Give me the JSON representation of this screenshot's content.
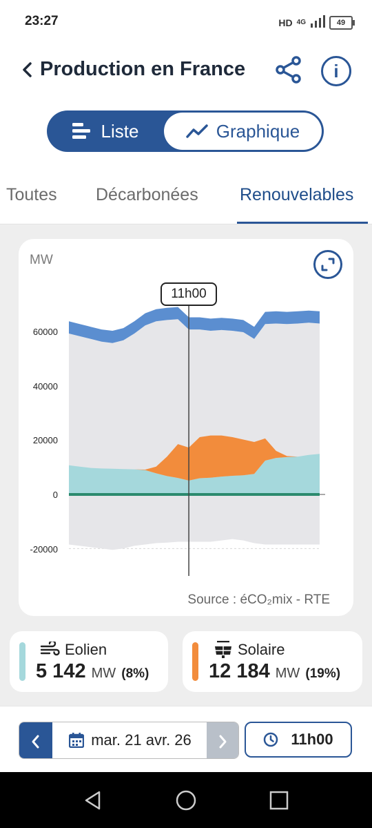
{
  "status": {
    "time": "23:27",
    "network": "HD",
    "signal": "4G",
    "battery": "49"
  },
  "header": {
    "title": "Production en France",
    "back_icon": "chevron-left-icon",
    "share_icon": "share-icon",
    "info_icon": "info-icon"
  },
  "view_toggle": {
    "list_label": "Liste",
    "chart_label": "Graphique",
    "selected": "Graphique"
  },
  "tabs": [
    {
      "label": "Toutes",
      "active": false
    },
    {
      "label": "Décarbonées",
      "active": false
    },
    {
      "label": "Renouvelables",
      "active": true
    }
  ],
  "chart": {
    "unit": "MW",
    "marker_label": "11h00",
    "source": "Source : éCO₂mix - RTE",
    "colors": {
      "wind": "#a5d8dc",
      "solar": "#f28c3c",
      "total": "#5b8ed0",
      "base": "#2b8a6e",
      "area": "#e6e6e9"
    }
  },
  "chart_data": {
    "type": "area",
    "ylabel": "MW",
    "y_ticks": [
      60000,
      40000,
      20000,
      0,
      -20000
    ],
    "ylim": [
      -22000,
      70000
    ],
    "x_hours": [
      0,
      1,
      2,
      3,
      4,
      5,
      6,
      7,
      8,
      9,
      10,
      11,
      12,
      13,
      14,
      15,
      16,
      17,
      18,
      19,
      20,
      21,
      22,
      23
    ],
    "series": [
      {
        "name": "Eolien",
        "values": [
          10800,
          10300,
          9800,
          9600,
          9500,
          9400,
          9300,
          9000,
          7800,
          6800,
          6100,
          5142,
          6000,
          6200,
          6600,
          6900,
          7100,
          7600,
          12500,
          13500,
          13800,
          14000,
          14600,
          15000
        ]
      },
      {
        "name": "Solaire",
        "values": [
          0,
          0,
          0,
          0,
          0,
          0,
          0,
          200,
          2500,
          7200,
          12500,
          12184,
          15200,
          15600,
          15200,
          14300,
          13200,
          11800,
          8200,
          2600,
          400,
          0,
          0,
          0
        ]
      },
      {
        "name": "Total",
        "values": [
          59500,
          58500,
          57500,
          56500,
          56000,
          57000,
          59500,
          62500,
          64000,
          64500,
          64800,
          61000,
          61000,
          60500,
          60800,
          60500,
          60000,
          57500,
          63000,
          63200,
          63000,
          63200,
          63500,
          63200
        ]
      }
    ],
    "lower_area": [
      -18500,
      -19000,
      -19500,
      -20000,
      -20500,
      -20000,
      -19000,
      -18500,
      -18000,
      -17800,
      -17500,
      -17500,
      -17500,
      -17500,
      -17000,
      -16500,
      -17000,
      -18000,
      -18500,
      -18500,
      -18500,
      -18500,
      -18500,
      -18500
    ]
  },
  "stats": [
    {
      "label": "Eolien",
      "icon": "wind-icon",
      "value": "5 142",
      "unit": "MW",
      "percent": "(8%)",
      "color": "#a5d8dc"
    },
    {
      "label": "Solaire",
      "icon": "solar-panel-icon",
      "value": "12 184",
      "unit": "MW",
      "percent": "(19%)",
      "color": "#f28c3c"
    }
  ],
  "footer": {
    "date": "mar. 21 avr. 26",
    "time": "11h00"
  }
}
